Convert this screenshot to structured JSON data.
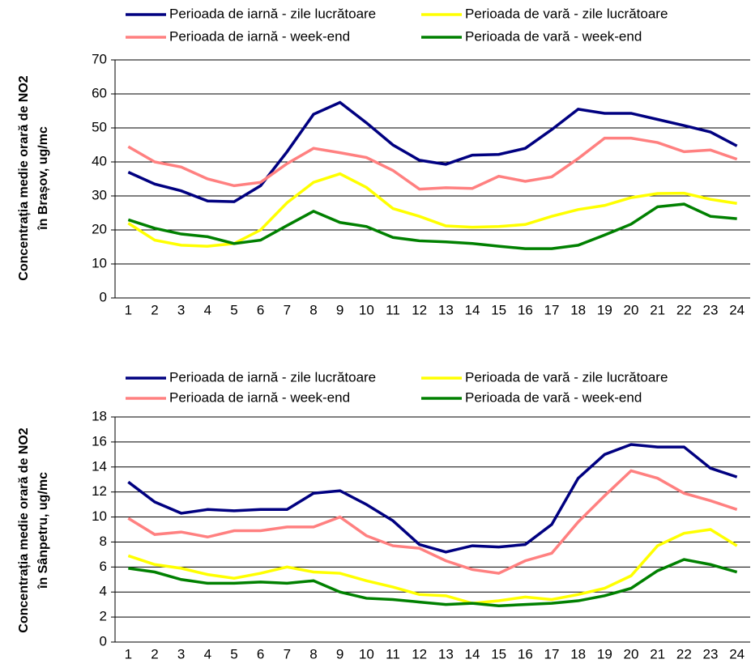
{
  "chart_data": [
    {
      "type": "line",
      "ylabel": [
        "Concentrația medie orară de NO2",
        "în Brașov, ug/mc"
      ],
      "categories": [
        "1",
        "2",
        "3",
        "4",
        "5",
        "6",
        "7",
        "8",
        "9",
        "10",
        "11",
        "12",
        "13",
        "14",
        "15",
        "16",
        "17",
        "18",
        "19",
        "20",
        "21",
        "22",
        "23",
        "24"
      ],
      "ylim": [
        0,
        70
      ],
      "yticks": [
        0,
        10,
        20,
        30,
        40,
        50,
        60,
        70
      ],
      "grid": true,
      "series": [
        {
          "name": "Perioada de iarnă - zile lucrătoare",
          "color": "#000080",
          "values": [
            37,
            33.5,
            31.5,
            28.5,
            28.3,
            33,
            43,
            54,
            57.5,
            51.5,
            45,
            40.5,
            39.3,
            42,
            42.2,
            44,
            49.5,
            55.5,
            54.3,
            54.3,
            52.5,
            50.7,
            48.8,
            44.7
          ]
        },
        {
          "name": "Perioada de vară - zile lucrătoare",
          "color": "#ffff00",
          "values": [
            22,
            17,
            15.5,
            15.2,
            16,
            20,
            28,
            34,
            36.5,
            32.5,
            26.3,
            24,
            21.2,
            20.8,
            21,
            21.6,
            24,
            26,
            27.2,
            29.5,
            30.7,
            30.8,
            29,
            27.8
          ]
        },
        {
          "name": "Perioada de iarnă - week-end",
          "color": "#ff8080",
          "values": [
            44.5,
            40,
            38.5,
            35,
            33,
            34,
            39.5,
            44,
            42.7,
            41.3,
            37.5,
            32,
            32.4,
            32.2,
            35.8,
            34.3,
            35.6,
            41,
            47,
            47,
            45.7,
            43,
            43.5,
            40.8
          ]
        },
        {
          "name": "Perioada de vară - week-end",
          "color": "#008000",
          "values": [
            23,
            20.5,
            18.8,
            18,
            16,
            17,
            21.3,
            25.5,
            22.2,
            21,
            17.8,
            16.8,
            16.5,
            16,
            15.2,
            14.5,
            14.5,
            15.5,
            18.5,
            21.7,
            26.8,
            27.6,
            24,
            23.3
          ]
        }
      ]
    },
    {
      "type": "line",
      "ylabel": [
        "Concentrația medie orară de NO2",
        "în Sânpetru, ug/mc"
      ],
      "categories": [
        "1",
        "2",
        "3",
        "4",
        "5",
        "6",
        "7",
        "8",
        "9",
        "10",
        "11",
        "12",
        "13",
        "14",
        "15",
        "16",
        "17",
        "18",
        "19",
        "20",
        "21",
        "22",
        "23",
        "24"
      ],
      "ylim": [
        0,
        18
      ],
      "yticks": [
        0,
        2,
        4,
        6,
        8,
        10,
        12,
        14,
        16,
        18
      ],
      "grid": true,
      "series": [
        {
          "name": "Perioada de iarnă - zile lucrătoare",
          "color": "#000080",
          "values": [
            12.8,
            11.2,
            10.3,
            10.6,
            10.5,
            10.6,
            10.6,
            11.9,
            12.1,
            11,
            9.7,
            7.8,
            7.2,
            7.7,
            7.6,
            7.8,
            9.4,
            13.1,
            15,
            15.8,
            15.6,
            15.6,
            13.9,
            13.2
          ]
        },
        {
          "name": "Perioada de vară - zile lucrătoare",
          "color": "#ffff00",
          "values": [
            6.9,
            6.2,
            5.9,
            5.4,
            5.1,
            5.5,
            6,
            5.6,
            5.5,
            4.9,
            4.4,
            3.8,
            3.7,
            3.1,
            3.3,
            3.6,
            3.4,
            3.8,
            4.3,
            5.3,
            7.7,
            8.7,
            9,
            7.7
          ]
        },
        {
          "name": "Perioada de iarnă - week-end",
          "color": "#ff8080",
          "values": [
            9.9,
            8.6,
            8.8,
            8.4,
            8.9,
            8.9,
            9.2,
            9.2,
            10,
            8.5,
            7.7,
            7.5,
            6.5,
            5.8,
            5.5,
            6.5,
            7.1,
            9.6,
            11.7,
            13.7,
            13.1,
            11.9,
            11.3,
            10.6
          ]
        },
        {
          "name": "Perioada de vară - week-end",
          "color": "#008000",
          "values": [
            5.9,
            5.6,
            5,
            4.7,
            4.7,
            4.8,
            4.7,
            4.9,
            4,
            3.5,
            3.4,
            3.2,
            3,
            3.1,
            2.9,
            3,
            3.1,
            3.3,
            3.7,
            4.3,
            5.7,
            6.6,
            6.2,
            5.6
          ]
        }
      ]
    }
  ]
}
